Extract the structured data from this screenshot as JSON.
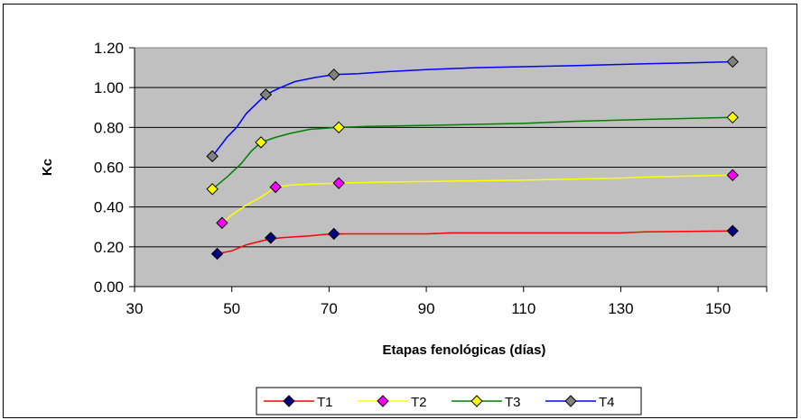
{
  "chart_data": {
    "type": "line",
    "title": "",
    "xlabel": "Etapas fenológicas (días)",
    "ylabel": "Kc",
    "xlim": [
      30,
      160
    ],
    "ylim": [
      0,
      1.2
    ],
    "x_ticks": [
      30,
      50,
      70,
      90,
      110,
      130,
      150
    ],
    "x_tick_labels": [
      "30",
      "50",
      "70",
      "90",
      "110",
      "130",
      "150"
    ],
    "y_ticks": [
      0,
      0.2,
      0.4,
      0.6,
      0.8,
      1.0,
      1.2
    ],
    "y_tick_labels": [
      "0.00",
      "0.20",
      "0.40",
      "0.60",
      "0.80",
      "1.00",
      "1.20"
    ],
    "grid": "horizontal",
    "plot_background": "#c0c0c0",
    "legend_position": "bottom",
    "series": [
      {
        "name": "T1",
        "color": "#ff0000",
        "marker_color": "#000080",
        "line": [
          [
            47,
            0.165
          ],
          [
            50,
            0.18
          ],
          [
            53,
            0.21
          ],
          [
            57,
            0.235
          ],
          [
            60,
            0.245
          ],
          [
            63,
            0.25
          ],
          [
            66,
            0.255
          ],
          [
            69,
            0.262
          ],
          [
            71,
            0.265
          ],
          [
            80,
            0.265
          ],
          [
            90,
            0.265
          ],
          [
            95,
            0.27
          ],
          [
            110,
            0.27
          ],
          [
            130,
            0.27
          ],
          [
            135,
            0.275
          ],
          [
            153,
            0.28
          ]
        ],
        "markers": [
          [
            47,
            0.165
          ],
          [
            58,
            0.245
          ],
          [
            71,
            0.265
          ],
          [
            153,
            0.28
          ]
        ]
      },
      {
        "name": "T2",
        "color": "#ffff00",
        "marker_color": "#ff00ff",
        "line": [
          [
            48,
            0.32
          ],
          [
            50,
            0.36
          ],
          [
            53,
            0.41
          ],
          [
            56,
            0.45
          ],
          [
            59,
            0.5
          ],
          [
            62,
            0.51
          ],
          [
            66,
            0.515
          ],
          [
            72,
            0.52
          ],
          [
            80,
            0.525
          ],
          [
            95,
            0.53
          ],
          [
            110,
            0.535
          ],
          [
            120,
            0.54
          ],
          [
            130,
            0.545
          ],
          [
            135,
            0.55
          ],
          [
            153,
            0.56
          ]
        ],
        "markers": [
          [
            48,
            0.32
          ],
          [
            59,
            0.5
          ],
          [
            72,
            0.52
          ],
          [
            153,
            0.56
          ]
        ]
      },
      {
        "name": "T3",
        "color": "#008000",
        "marker_color": "#ffff00",
        "line": [
          [
            46,
            0.49
          ],
          [
            49,
            0.55
          ],
          [
            52,
            0.62
          ],
          [
            54,
            0.68
          ],
          [
            56,
            0.725
          ],
          [
            59,
            0.75
          ],
          [
            62,
            0.77
          ],
          [
            66,
            0.79
          ],
          [
            72,
            0.8
          ],
          [
            78,
            0.805
          ],
          [
            90,
            0.81
          ],
          [
            100,
            0.815
          ],
          [
            110,
            0.82
          ],
          [
            120,
            0.83
          ],
          [
            135,
            0.84
          ],
          [
            153,
            0.85
          ]
        ],
        "markers": [
          [
            46,
            0.49
          ],
          [
            56,
            0.725
          ],
          [
            72,
            0.8
          ],
          [
            153,
            0.85
          ]
        ]
      },
      {
        "name": "T4",
        "color": "#0000ff",
        "marker_color": "#808080",
        "line": [
          [
            46,
            0.655
          ],
          [
            49,
            0.75
          ],
          [
            51,
            0.8
          ],
          [
            53,
            0.87
          ],
          [
            57,
            0.965
          ],
          [
            60,
            1.0
          ],
          [
            63,
            1.03
          ],
          [
            67,
            1.05
          ],
          [
            71,
            1.065
          ],
          [
            76,
            1.07
          ],
          [
            82,
            1.08
          ],
          [
            90,
            1.09
          ],
          [
            100,
            1.1
          ],
          [
            110,
            1.105
          ],
          [
            120,
            1.11
          ],
          [
            135,
            1.12
          ],
          [
            145,
            1.125
          ],
          [
            153,
            1.13
          ]
        ],
        "markers": [
          [
            46,
            0.655
          ],
          [
            57,
            0.965
          ],
          [
            71,
            1.065
          ],
          [
            153,
            1.13
          ]
        ]
      }
    ]
  }
}
